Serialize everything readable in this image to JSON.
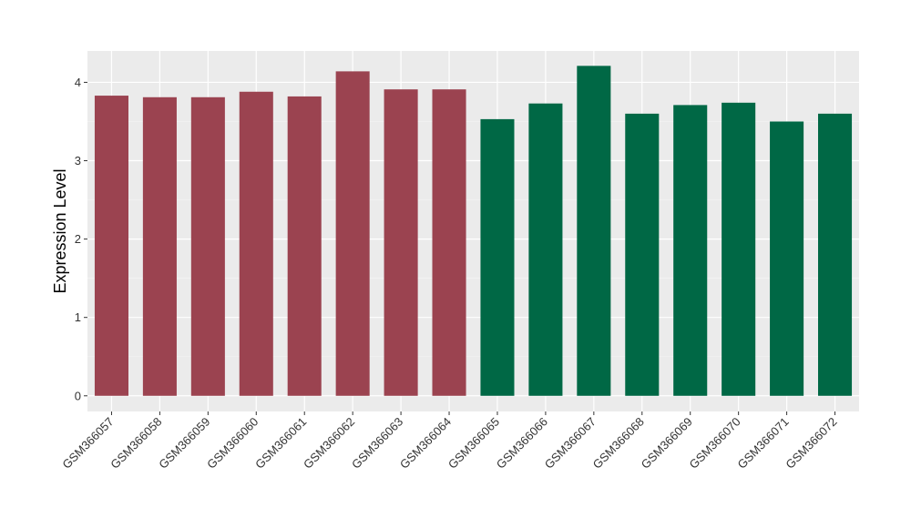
{
  "chart_data": {
    "type": "bar",
    "title": "",
    "xlabel": "",
    "ylabel": "Expression Level",
    "ylim": [
      -0.2,
      4.4
    ],
    "yticks": [
      0,
      1,
      2,
      3,
      4
    ],
    "grid": true,
    "panel_background": "#ebebeb",
    "categories": [
      "GSM366057",
      "GSM366058",
      "GSM366059",
      "GSM366060",
      "GSM366061",
      "GSM366062",
      "GSM366063",
      "GSM366064",
      "GSM366065",
      "GSM366066",
      "GSM366067",
      "GSM366068",
      "GSM366069",
      "GSM366070",
      "GSM366071",
      "GSM366072"
    ],
    "values": [
      3.83,
      3.81,
      3.81,
      3.88,
      3.82,
      4.14,
      3.91,
      3.91,
      3.53,
      3.73,
      4.21,
      3.6,
      3.71,
      3.74,
      3.5,
      3.6
    ],
    "group_colors": [
      "#9b4350",
      "#9b4350",
      "#9b4350",
      "#9b4350",
      "#9b4350",
      "#9b4350",
      "#9b4350",
      "#9b4350",
      "#006845",
      "#006845",
      "#006845",
      "#006845",
      "#006845",
      "#006845",
      "#006845",
      "#006845"
    ]
  }
}
